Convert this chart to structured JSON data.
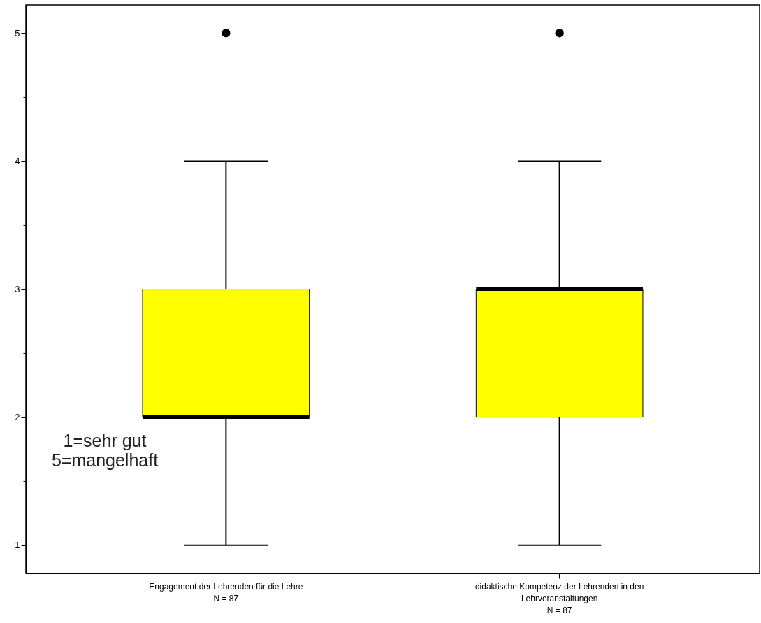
{
  "chart_data": {
    "type": "box",
    "categories": [
      "Engagement der Lehrenden für die Lehre\nN = 87",
      "didaktische Kompetenz der Lehrenden in den\nLehrveranstaltungen\nN = 87"
    ],
    "boxes": [
      {
        "low": 1,
        "q1": 2,
        "median": 2,
        "q3": 3,
        "high": 4,
        "outliers": [
          5
        ]
      },
      {
        "low": 1,
        "q1": 2,
        "median": 3,
        "q3": 3,
        "high": 4,
        "outliers": [
          5
        ]
      }
    ],
    "colors": [
      "#ffff00",
      "#ffff00"
    ],
    "ylim": [
      0.78,
      5.22
    ],
    "yticks": [
      1,
      {
        "value": 1.5,
        "label": null
      },
      2,
      {
        "value": 2.5,
        "label": null
      },
      3,
      {
        "value": 3.5,
        "label": null
      },
      4,
      {
        "value": 4.5,
        "label": null
      },
      5
    ],
    "grid": false,
    "annotations": [
      "1=sehr gut\n5=mangelhaft"
    ]
  }
}
